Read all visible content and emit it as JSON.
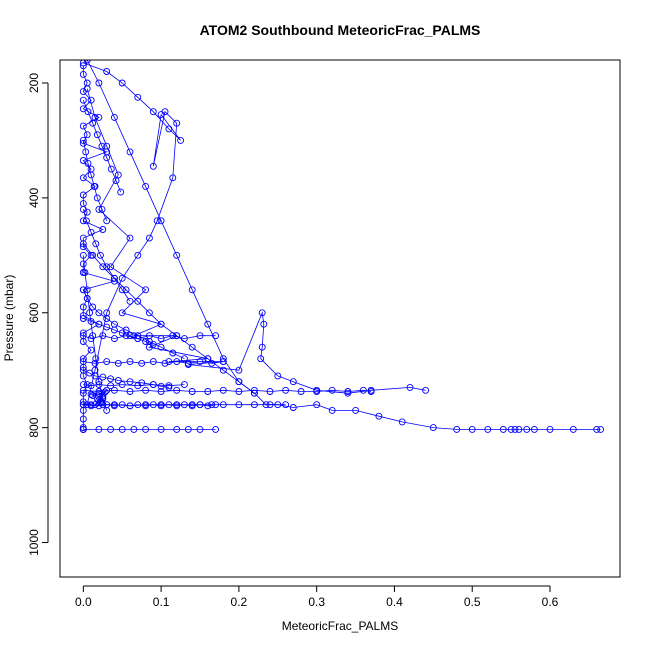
{
  "chart_data": {
    "type": "scatter",
    "title": "ATOM2 Southbound MeteoricFrac_PALMS",
    "xlabel": "MeteoricFrac_PALMS",
    "ylabel": "Pressure (mbar)",
    "xlim": [
      -0.03,
      0.69
    ],
    "ylim": [
      1060,
      160
    ],
    "y_reversed": true,
    "x_ticks": [
      "0.0",
      "0.1",
      "0.2",
      "0.3",
      "0.4",
      "0.5",
      "0.6"
    ],
    "y_ticks": [
      "200",
      "400",
      "600",
      "800",
      "1000"
    ],
    "grid": false,
    "legend": "none",
    "series_color": "#0000ff",
    "series": [
      {
        "x": [
          0.0,
          0.0,
          0.005,
          0.0,
          0.01,
          0.0,
          0.02,
          0.0,
          0.005,
          0.0,
          0.03,
          0.0,
          0.01,
          0.0,
          0.015,
          0.0,
          0.0,
          0.005,
          0.0,
          0.025,
          0.0,
          0.0,
          0.01,
          0.0,
          0.0,
          0.04,
          0.0,
          0.005,
          0.0,
          0.0,
          0.02,
          0.0,
          0.0,
          0.01,
          0.0,
          0.0,
          0.0,
          0.005,
          0.0,
          0.0,
          0.0,
          0.0,
          0.0,
          0.0,
          0.0,
          0.0
        ],
        "y": [
          170,
          185,
          200,
          215,
          230,
          245,
          260,
          275,
          290,
          305,
          320,
          335,
          350,
          365,
          380,
          395,
          410,
          425,
          440,
          455,
          470,
          485,
          500,
          515,
          530,
          545,
          560,
          575,
          590,
          605,
          620,
          635,
          650,
          665,
          680,
          695,
          710,
          725,
          740,
          755,
          770,
          785,
          800,
          803,
          803,
          803
        ]
      },
      {
        "x": [
          0.005,
          0.015,
          0.03,
          0.045,
          0.02,
          0.06,
          0.035,
          0.08,
          0.05,
          0.1,
          0.065,
          0.12,
          0.085,
          0.16,
          0.11,
          0.18,
          0.135,
          0.2,
          0.23,
          0.232,
          0.23,
          0.228,
          0.25,
          0.27,
          0.3,
          0.34,
          0.37,
          0.42,
          0.44
        ],
        "y": [
          210,
          260,
          310,
          360,
          420,
          470,
          520,
          560,
          600,
          620,
          640,
          640,
          660,
          680,
          685,
          685,
          690,
          700,
          600,
          620,
          660,
          680,
          710,
          720,
          735,
          740,
          735,
          730,
          735
        ]
      },
      {
        "x": [
          0.005,
          0.02,
          0.04,
          0.06,
          0.08,
          0.1,
          0.12,
          0.14,
          0.16,
          0.18,
          0.2,
          0.22,
          0.235,
          0.25,
          0.27,
          0.3,
          0.32,
          0.35,
          0.38,
          0.41,
          0.45,
          0.48,
          0.5,
          0.52,
          0.54,
          0.55,
          0.555,
          0.56,
          0.57,
          0.58,
          0.6,
          0.63,
          0.66,
          0.665
        ],
        "y": [
          160,
          200,
          260,
          320,
          380,
          440,
          500,
          560,
          620,
          680,
          720,
          740,
          760,
          760,
          765,
          760,
          770,
          770,
          780,
          790,
          800,
          803,
          803,
          803,
          803,
          803,
          803,
          803,
          803,
          803,
          803,
          803,
          803,
          803
        ]
      },
      {
        "x": [
          0.0,
          0.03,
          0.05,
          0.07,
          0.09,
          0.11,
          0.125,
          0.1,
          0.09,
          0.105,
          0.12,
          0.115,
          0.095,
          0.085,
          0.07,
          0.05,
          0.03,
          0.015,
          0.005
        ],
        "y": [
          165,
          180,
          200,
          225,
          250,
          280,
          300,
          255,
          345,
          250,
          270,
          365,
          440,
          470,
          500,
          540,
          600,
          700,
          760
        ]
      },
      {
        "x": [
          0.0,
          0.01,
          0.025,
          0.04,
          0.06,
          0.08,
          0.1,
          0.12,
          0.14,
          0.15,
          0.165,
          0.18,
          0.2,
          0.22,
          0.24,
          0.26
        ],
        "y": [
          760,
          762,
          760,
          760,
          762,
          760,
          760,
          760,
          760,
          760,
          760,
          760,
          760,
          760,
          760,
          760
        ]
      },
      {
        "x": [
          0.0,
          0.02,
          0.035,
          0.05,
          0.065,
          0.08,
          0.1,
          0.12,
          0.135,
          0.15,
          0.17
        ],
        "y": [
          803,
          803,
          803,
          803,
          803,
          803,
          803,
          803,
          803,
          803,
          803
        ]
      },
      {
        "x": [
          0.0,
          0.02,
          0.04,
          0.06,
          0.08,
          0.1,
          0.12,
          0.14,
          0.16,
          0.18,
          0.2,
          0.22,
          0.24,
          0.26,
          0.28,
          0.3,
          0.32,
          0.34,
          0.36,
          0.37
        ],
        "y": [
          735,
          737,
          735,
          737,
          735,
          737,
          735,
          737,
          737,
          735,
          737,
          735,
          737,
          735,
          737,
          737,
          735,
          737,
          735,
          737
        ]
      },
      {
        "x": [
          0.0,
          0.015,
          0.03,
          0.045,
          0.06,
          0.075,
          0.09,
          0.105,
          0.12,
          0.135,
          0.15,
          0.165,
          0.18
        ],
        "y": [
          685,
          688,
          685,
          688,
          685,
          688,
          685,
          688,
          685,
          688,
          685,
          688,
          685
        ]
      },
      {
        "x": [
          0.0,
          0.01,
          0.02,
          0.035,
          0.05,
          0.07,
          0.09,
          0.11,
          0.13
        ],
        "y": [
          725,
          727,
          725,
          727,
          725,
          727,
          725,
          727,
          725
        ]
      },
      {
        "x": [
          0.0,
          0.01,
          0.025,
          0.04,
          0.055,
          0.07,
          0.085,
          0.1,
          0.115,
          0.13,
          0.15,
          0.17
        ],
        "y": [
          640,
          645,
          640,
          645,
          640,
          645,
          640,
          645,
          640,
          645,
          640,
          640
        ]
      },
      {
        "x": [
          0.0,
          0.008,
          0.015,
          0.025,
          0.035,
          0.045,
          0.06,
          0.075,
          0.09,
          0.1,
          0.11
        ],
        "y": [
          700,
          705,
          710,
          712,
          715,
          718,
          720,
          722,
          725,
          728,
          730
        ]
      },
      {
        "x": [
          0.0,
          0.005,
          0.012,
          0.02,
          0.03,
          0.04,
          0.055,
          0.07,
          0.085,
          0.1,
          0.115,
          0.13
        ],
        "y": [
          560,
          575,
          590,
          600,
          610,
          620,
          630,
          640,
          650,
          660,
          670,
          680
        ]
      },
      {
        "x": [
          0.0,
          0.004,
          0.01,
          0.016,
          0.022,
          0.03,
          0.04,
          0.05,
          0.06
        ],
        "y": [
          420,
          440,
          460,
          480,
          500,
          520,
          540,
          560,
          580
        ]
      },
      {
        "x": [
          0.0,
          0.003,
          0.006,
          0.01,
          0.014,
          0.018,
          0.024,
          0.03
        ],
        "y": [
          300,
          320,
          340,
          360,
          380,
          400,
          420,
          440
        ]
      },
      {
        "x": [
          0.0,
          0.002,
          0.005,
          0.008,
          0.012,
          0.016,
          0.02,
          0.025,
          0.03
        ],
        "y": [
          500,
          530,
          560,
          600,
          640,
          680,
          720,
          750,
          770
        ]
      },
      {
        "x": [
          0.02,
          0.025,
          0.018,
          0.022,
          0.015,
          0.03,
          0.01,
          0.025,
          0.02,
          0.028,
          0.012,
          0.024
        ],
        "y": [
          740,
          745,
          750,
          755,
          760,
          735,
          742,
          748,
          752,
          738,
          744,
          756
        ]
      },
      {
        "x": [
          0.0,
          0.006,
          0.012,
          0.018,
          0.024,
          0.03,
          0.036,
          0.042,
          0.048
        ],
        "y": [
          230,
          250,
          270,
          290,
          310,
          330,
          350,
          370,
          390
        ]
      },
      {
        "x": [
          0.0,
          0.01,
          0.02,
          0.03,
          0.04,
          0.05,
          0.06,
          0.07,
          0.08,
          0.09
        ],
        "y": [
          610,
          615,
          620,
          625,
          630,
          635,
          640,
          645,
          650,
          655
        ]
      },
      {
        "x": [
          0.0,
          0.012,
          0.025,
          0.04,
          0.055,
          0.07,
          0.085,
          0.1,
          0.12,
          0.14,
          0.16,
          0.18,
          0.2,
          0.22
        ],
        "y": [
          480,
          500,
          520,
          540,
          560,
          580,
          600,
          620,
          640,
          660,
          680,
          700,
          720,
          740
        ]
      },
      {
        "x": [
          0.0,
          0.01,
          0.02,
          0.03,
          0.04,
          0.05,
          0.06,
          0.07,
          0.08,
          0.09,
          0.1,
          0.11,
          0.12,
          0.13,
          0.14,
          0.15,
          0.16,
          0.17
        ],
        "y": [
          760,
          760,
          762,
          760,
          762,
          760,
          762,
          760,
          762,
          760,
          762,
          760,
          762,
          760,
          762,
          760,
          762,
          760
        ]
      }
    ]
  }
}
